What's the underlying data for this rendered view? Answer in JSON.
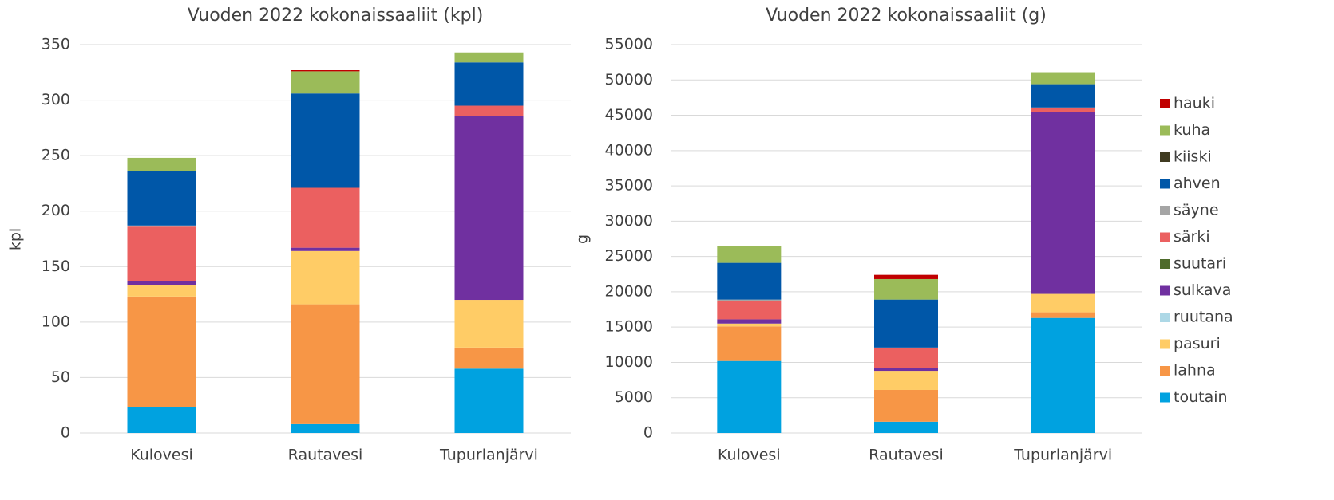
{
  "chart_data": [
    {
      "type": "stacked_bar",
      "title": "Vuoden 2022 kokonaissaaliit (kpl)",
      "y_label": "kpl",
      "categories": [
        "Kulovesi",
        "Rautavesi",
        "Tupurlanjärvi"
      ],
      "ylim": [
        0,
        350
      ],
      "yticks": [
        0,
        50,
        100,
        150,
        200,
        250,
        300,
        350
      ],
      "grid": true,
      "series": [
        {
          "name": "toutain",
          "color": "#00a2e0",
          "values": [
            23,
            8,
            58
          ]
        },
        {
          "name": "lahna",
          "color": "#f79646",
          "values": [
            100,
            108,
            19
          ]
        },
        {
          "name": "pasuri",
          "color": "#ffcc66",
          "values": [
            10,
            48,
            43
          ]
        },
        {
          "name": "ruutana",
          "color": "#add8e6",
          "values": [
            0,
            0,
            0
          ]
        },
        {
          "name": "sulkava",
          "color": "#7030a0",
          "values": [
            4,
            3,
            166
          ]
        },
        {
          "name": "suutari",
          "color": "#4e6b2b",
          "values": [
            0,
            0,
            0
          ]
        },
        {
          "name": "särki",
          "color": "#eb6060",
          "values": [
            49,
            54,
            9
          ]
        },
        {
          "name": "säyne",
          "color": "#a5a5a5",
          "values": [
            1,
            0,
            0
          ]
        },
        {
          "name": "ahven",
          "color": "#0057a8",
          "values": [
            49,
            85,
            39
          ]
        },
        {
          "name": "kiiski",
          "color": "#403b21",
          "values": [
            0,
            0,
            0
          ]
        },
        {
          "name": "kuha",
          "color": "#9bbb59",
          "values": [
            12,
            20,
            9
          ]
        },
        {
          "name": "hauki",
          "color": "#c00000",
          "values": [
            0,
            1,
            0
          ]
        }
      ]
    },
    {
      "type": "stacked_bar",
      "title": "Vuoden 2022 kokonaissaaliit (g)",
      "y_label": "g",
      "categories": [
        "Kulovesi",
        "Rautavesi",
        "Tupurlanjärvi"
      ],
      "ylim": [
        0,
        55000
      ],
      "yticks": [
        0,
        5000,
        10000,
        15000,
        20000,
        25000,
        30000,
        35000,
        40000,
        45000,
        50000,
        55000
      ],
      "grid": true,
      "legend": "right",
      "series": [
        {
          "name": "toutain",
          "color": "#00a2e0",
          "values": [
            10200,
            1600,
            16300
          ]
        },
        {
          "name": "lahna",
          "color": "#f79646",
          "values": [
            4900,
            4500,
            800
          ]
        },
        {
          "name": "pasuri",
          "color": "#ffcc66",
          "values": [
            400,
            2700,
            2600
          ]
        },
        {
          "name": "ruutana",
          "color": "#add8e6",
          "values": [
            0,
            0,
            0
          ]
        },
        {
          "name": "sulkava",
          "color": "#7030a0",
          "values": [
            600,
            400,
            25800
          ]
        },
        {
          "name": "suutari",
          "color": "#4e6b2b",
          "values": [
            0,
            0,
            0
          ]
        },
        {
          "name": "särki",
          "color": "#eb6060",
          "values": [
            2600,
            2900,
            600
          ]
        },
        {
          "name": "säyne",
          "color": "#a5a5a5",
          "values": [
            200,
            0,
            0
          ]
        },
        {
          "name": "ahven",
          "color": "#0057a8",
          "values": [
            5200,
            6800,
            3300
          ]
        },
        {
          "name": "kiiski",
          "color": "#403b21",
          "values": [
            0,
            0,
            0
          ]
        },
        {
          "name": "kuha",
          "color": "#9bbb59",
          "values": [
            2400,
            2900,
            1700
          ]
        },
        {
          "name": "hauki",
          "color": "#c00000",
          "values": [
            0,
            600,
            0
          ]
        }
      ]
    }
  ]
}
